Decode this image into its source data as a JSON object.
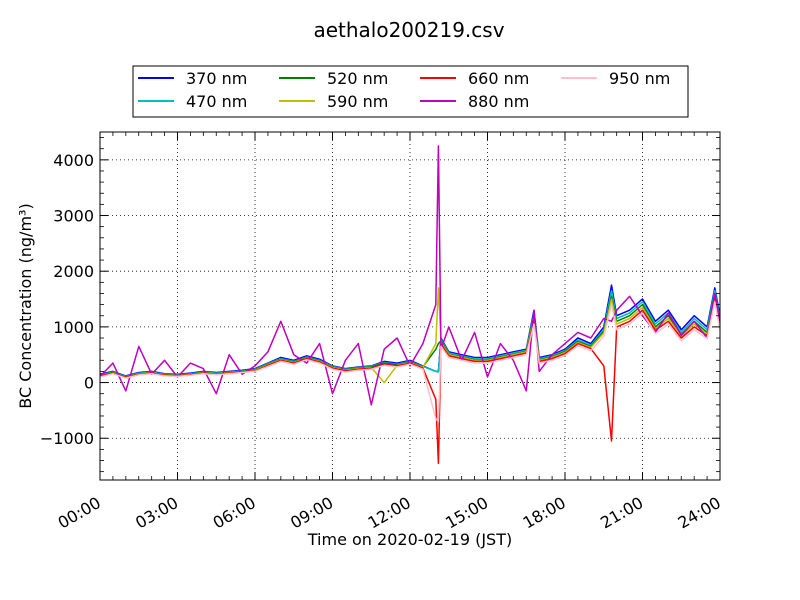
{
  "chart_data": {
    "type": "line",
    "title": "aethalo200219.csv",
    "xlabel": "Time on 2020-02-19 (JST)",
    "ylabel": "BC Concentration (ng/m³)",
    "xlim": [
      0,
      24
    ],
    "ylim": [
      -1750,
      4500
    ],
    "grid": true,
    "legend_position": "top",
    "x_ticks": [
      {
        "v": 0,
        "label": "00:00"
      },
      {
        "v": 3,
        "label": "03:00"
      },
      {
        "v": 6,
        "label": "06:00"
      },
      {
        "v": 9,
        "label": "09:00"
      },
      {
        "v": 12,
        "label": "12:00"
      },
      {
        "v": 15,
        "label": "15:00"
      },
      {
        "v": 18,
        "label": "18:00"
      },
      {
        "v": 21,
        "label": "21:00"
      },
      {
        "v": 24,
        "label": "24:00"
      }
    ],
    "y_ticks": [
      {
        "v": -1000,
        "label": "−1000"
      },
      {
        "v": 0,
        "label": "0"
      },
      {
        "v": 1000,
        "label": "1000"
      },
      {
        "v": 2000,
        "label": "2000"
      },
      {
        "v": 3000,
        "label": "3000"
      },
      {
        "v": 4000,
        "label": "4000"
      }
    ],
    "x_hours": [
      0,
      0.5,
      1,
      1.5,
      2,
      2.5,
      3,
      3.5,
      4,
      4.5,
      5,
      5.5,
      6,
      6.5,
      7,
      7.5,
      8,
      8.5,
      9,
      9.5,
      10,
      10.5,
      11,
      11.5,
      12,
      12.5,
      13,
      13.1,
      13.2,
      13.5,
      14,
      14.5,
      15,
      15.5,
      16,
      16.5,
      16.8,
      17,
      17.5,
      18,
      18.5,
      19,
      19.5,
      19.8,
      20,
      20.5,
      21,
      21.5,
      22,
      22.5,
      23,
      23.5,
      23.8,
      24
    ],
    "series": [
      {
        "name": "370 nm",
        "color": "#0000ff",
        "values": [
          150,
          200,
          120,
          180,
          200,
          160,
          150,
          170,
          200,
          180,
          200,
          220,
          250,
          350,
          450,
          400,
          480,
          420,
          300,
          250,
          280,
          300,
          380,
          350,
          400,
          300,
          200,
          200,
          800,
          550,
          500,
          450,
          450,
          500,
          550,
          600,
          1300,
          450,
          500,
          600,
          800,
          700,
          1000,
          1750,
          1200,
          1300,
          1500,
          1100,
          1300,
          950,
          1200,
          1000,
          1700,
          1200
        ]
      },
      {
        "name": "470 nm",
        "color": "#00bfbf",
        "values": [
          140,
          190,
          110,
          170,
          190,
          150,
          140,
          160,
          190,
          170,
          190,
          210,
          240,
          340,
          430,
          380,
          460,
          400,
          290,
          240,
          270,
          290,
          360,
          330,
          380,
          290,
          200,
          190,
          780,
          530,
          480,
          430,
          430,
          480,
          530,
          580,
          1250,
          430,
          480,
          580,
          760,
          670,
          950,
          1650,
          1150,
          1250,
          1450,
          1050,
          1250,
          900,
          1150,
          950,
          1650,
          1150
        ]
      },
      {
        "name": "520 nm",
        "color": "#008000",
        "values": [
          130,
          180,
          100,
          160,
          180,
          140,
          130,
          150,
          180,
          160,
          180,
          200,
          230,
          330,
          420,
          370,
          450,
          390,
          280,
          230,
          260,
          280,
          350,
          320,
          370,
          280,
          600,
          700,
          750,
          510,
          460,
          410,
          410,
          460,
          510,
          560,
          1200,
          410,
          460,
          560,
          740,
          650,
          920,
          1550,
          1100,
          1200,
          1400,
          1000,
          1200,
          860,
          1100,
          900,
          1600,
          1100
        ]
      },
      {
        "name": "590 nm",
        "color": "#bfbf00",
        "values": [
          125,
          175,
          95,
          155,
          175,
          135,
          125,
          145,
          175,
          155,
          175,
          195,
          220,
          320,
          410,
          360,
          440,
          380,
          270,
          220,
          250,
          270,
          0,
          310,
          360,
          270,
          700,
          1700,
          720,
          500,
          450,
          400,
          400,
          450,
          500,
          550,
          1150,
          400,
          450,
          540,
          720,
          630,
          890,
          1500,
          1050,
          1150,
          1350,
          970,
          1150,
          830,
          1050,
          870,
          1550,
          1050
        ]
      },
      {
        "name": "660 nm",
        "color": "#ff0000",
        "values": [
          120,
          170,
          90,
          150,
          170,
          130,
          120,
          140,
          170,
          150,
          170,
          190,
          210,
          310,
          400,
          350,
          430,
          370,
          260,
          210,
          240,
          260,
          330,
          300,
          350,
          260,
          -300,
          -1450,
          690,
          480,
          430,
          380,
          380,
          430,
          480,
          530,
          1100,
          380,
          430,
          520,
          700,
          610,
          300,
          -1050,
          1000,
          1100,
          1300,
          940,
          1100,
          800,
          1000,
          840,
          1500,
          1000
        ]
      },
      {
        "name": "880 nm",
        "color": "#bf00bf",
        "values": [
          110,
          350,
          -150,
          650,
          150,
          400,
          100,
          350,
          250,
          -200,
          500,
          150,
          300,
          550,
          1100,
          500,
          350,
          700,
          -200,
          400,
          700,
          -400,
          600,
          800,
          300,
          700,
          1400,
          4250,
          600,
          1000,
          400,
          900,
          100,
          700,
          400,
          -150,
          1300,
          200,
          500,
          700,
          900,
          800,
          1150,
          1100,
          1300,
          1550,
          1200,
          900,
          1250,
          850,
          1100,
          800,
          1600,
          1100
        ]
      },
      {
        "name": "950 nm",
        "color": "#ffc0cb",
        "values": [
          100,
          160,
          80,
          140,
          160,
          120,
          110,
          130,
          160,
          140,
          160,
          180,
          200,
          290,
          380,
          330,
          410,
          350,
          240,
          190,
          220,
          240,
          310,
          280,
          330,
          240,
          -650,
          -700,
          650,
          450,
          400,
          350,
          350,
          400,
          450,
          500,
          1050,
          350,
          400,
          490,
          660,
          570,
          830,
          1400,
          950,
          1050,
          1250,
          880,
          1050,
          750,
          950,
          790,
          1450,
          950
        ]
      }
    ]
  }
}
